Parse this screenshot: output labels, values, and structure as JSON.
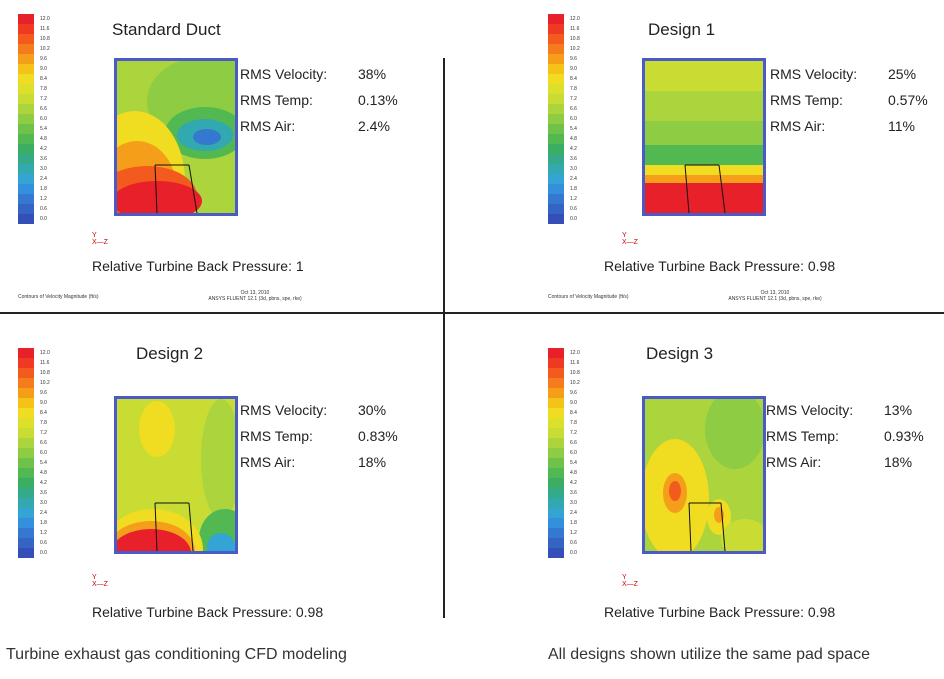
{
  "legend": {
    "labels": [
      "12.0",
      "11.6",
      "10.8",
      "10.2",
      "9.6",
      "9.0",
      "8.4",
      "7.8",
      "7.2",
      "6.6",
      "6.0",
      "5.4",
      "4.8",
      "4.2",
      "3.6",
      "3.0",
      "2.4",
      "1.8",
      "1.2",
      "0.6",
      "0.0"
    ],
    "colors": [
      "#e8202a",
      "#ee3a22",
      "#f25a1e",
      "#f47c1c",
      "#f59e1a",
      "#f5c21a",
      "#f0dc20",
      "#dde02a",
      "#c8dc34",
      "#acd43c",
      "#8ecc44",
      "#6ec24a",
      "#52b852",
      "#3cae62",
      "#34aa88",
      "#32a8b0",
      "#34a4d4",
      "#3490dc",
      "#3478d0",
      "#3464c4",
      "#3450b8"
    ]
  },
  "stat_labels": {
    "velocity": "RMS Velocity:",
    "temp": "RMS Temp:",
    "air": "RMS Air:"
  },
  "pressure_prefix": "Relative Turbine Back Pressure:",
  "panels": [
    {
      "title": "Standard Duct",
      "velocity": "38%",
      "temp": "0.13%",
      "air": "2.4%",
      "pressure": "Relative Turbine Back Pressure: 1",
      "footer_left": "Contours of Velocity Magnitude (ft/s)",
      "footer_date": "Oct 13, 2010",
      "footer_solver": "ANSYS FLUENT 12.1 (3d, pbns, spe, rke)"
    },
    {
      "title": "Design 1",
      "velocity": "25%",
      "temp": "0.57%",
      "air": "11%",
      "pressure": "Relative Turbine Back Pressure: 0.98",
      "footer_left": "Contours of Velocity Magnitude (ft/s)",
      "footer_date": "Oct 13, 2010",
      "footer_solver": "ANSYS FLUENT 12.1 (3d, pbns, spe, rke)"
    },
    {
      "title": "Design 2",
      "velocity": "30%",
      "temp": "0.83%",
      "air": "18%",
      "pressure": "Relative Turbine Back Pressure: 0.98"
    },
    {
      "title": "Design 3",
      "velocity": "13%",
      "temp": "0.93%",
      "air": "18%",
      "pressure": "Relative Turbine Back Pressure: 0.98"
    }
  ],
  "axis_mini": {
    "y": "Y",
    "x": "X—Z"
  },
  "captions": {
    "left": "Turbine exhaust gas conditioning CFD modeling",
    "right": "All designs shown utilize the same pad space"
  }
}
